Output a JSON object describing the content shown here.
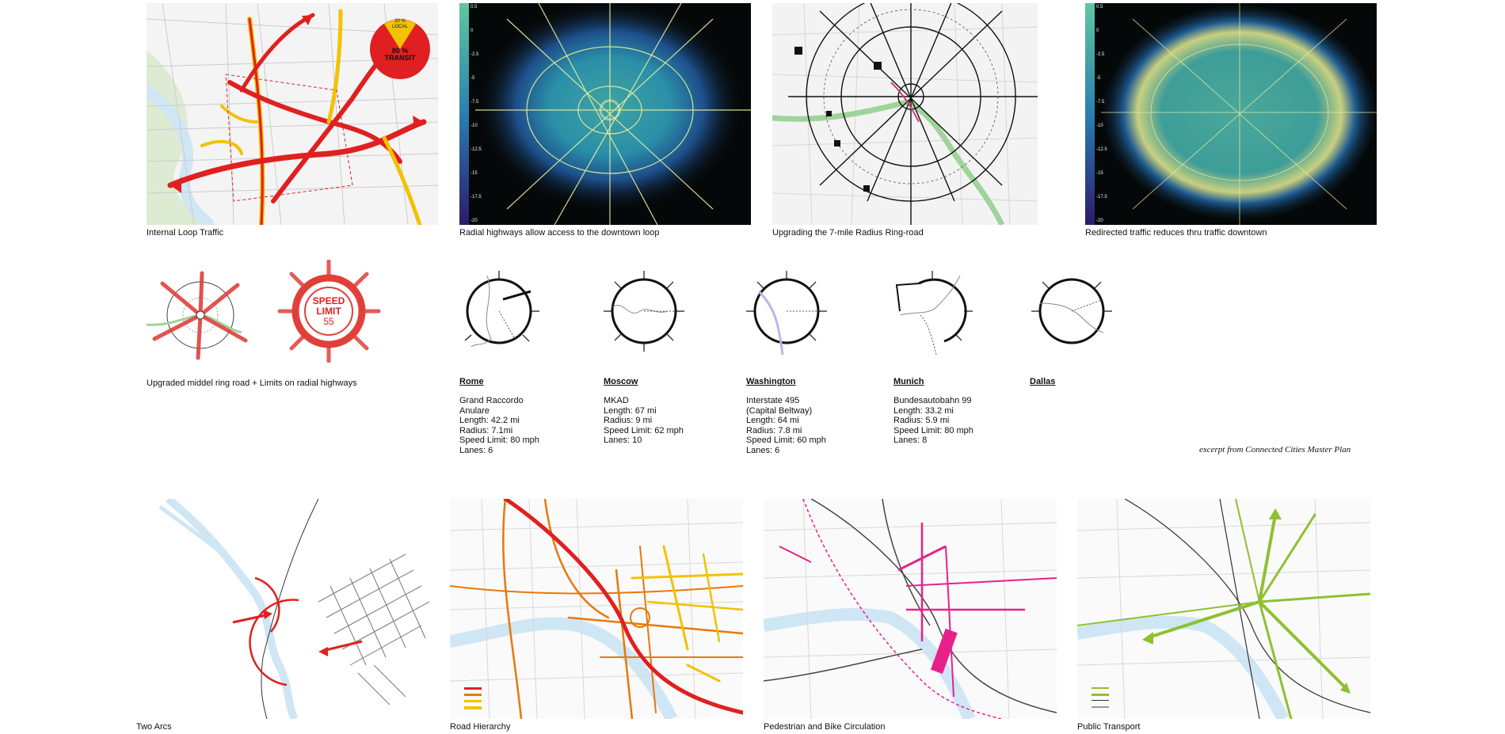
{
  "row1": {
    "captions": [
      "Internal Loop Traffic",
      "Radial highways allow access to the downtown loop",
      "Upgrading  the 7-mile Radius Ring-road",
      "Redirected traffic reduces thru traffic downtown"
    ],
    "pie": {
      "local_label": "20 % LOCAL",
      "transit_label": "80 % TRANSIT",
      "local_fraction": 0.2,
      "transit_fraction": 0.8
    },
    "heatmap_legend": [
      "0.5",
      "0",
      "-2.5",
      "-5",
      "-7.5",
      "-10",
      "-12.5",
      "-15",
      "-17.5",
      "-20"
    ],
    "heatmap_legend_b": [
      "0.5",
      "0",
      "-2.5",
      "-5",
      "-7.5",
      "-10",
      "-12.5",
      "-15",
      "-17.5",
      "-20"
    ]
  },
  "row2": {
    "speed_sign": {
      "line1": "SPEED",
      "line2": "LIMIT",
      "line3": "55"
    },
    "caption": "Upgraded middel ring road + Limits on radial highways",
    "cities": [
      {
        "name": "Rome",
        "lines": [
          "Grand Raccordo",
          "Anulare",
          "Length: 42.2 mi",
          "Radius: 7.1mi",
          "Speed Limit: 80 mph",
          "Lanes: 6"
        ]
      },
      {
        "name": "Moscow",
        "lines": [
          "MKAD",
          "Length: 67 mi",
          "Radius: 9 mi",
          "Speed Limit: 62 mph",
          "Lanes: 10"
        ]
      },
      {
        "name": "Washington",
        "lines": [
          "Interstate 495",
          "(Capital Beltway)",
          "Length: 64 mi",
          "Radius: 7.8 mi",
          "Speed Limit: 60 mph",
          "Lanes: 6"
        ]
      },
      {
        "name": "Munich",
        "lines": [
          "Bundesautobahn 99",
          "Length: 33.2 mi",
          "Radius: 5.9 mi",
          "Speed Limit: 80 mph",
          "Lanes: 8"
        ]
      },
      {
        "name": "Dallas",
        "lines": []
      }
    ],
    "excerpt": "excerpt from Connected Cities Master Plan"
  },
  "row3": {
    "captions": [
      "Two Arcs",
      "Road Hierarchy",
      "Pedestrian and Bike Circulation",
      "Public Transport"
    ]
  },
  "colors": {
    "red": "#e02020",
    "yellow": "#f2c200",
    "orange": "#e8780a",
    "pink": "#e8208a",
    "green": "#8fc030",
    "river": "#cfe6f5",
    "heat_bg": "#050808"
  }
}
